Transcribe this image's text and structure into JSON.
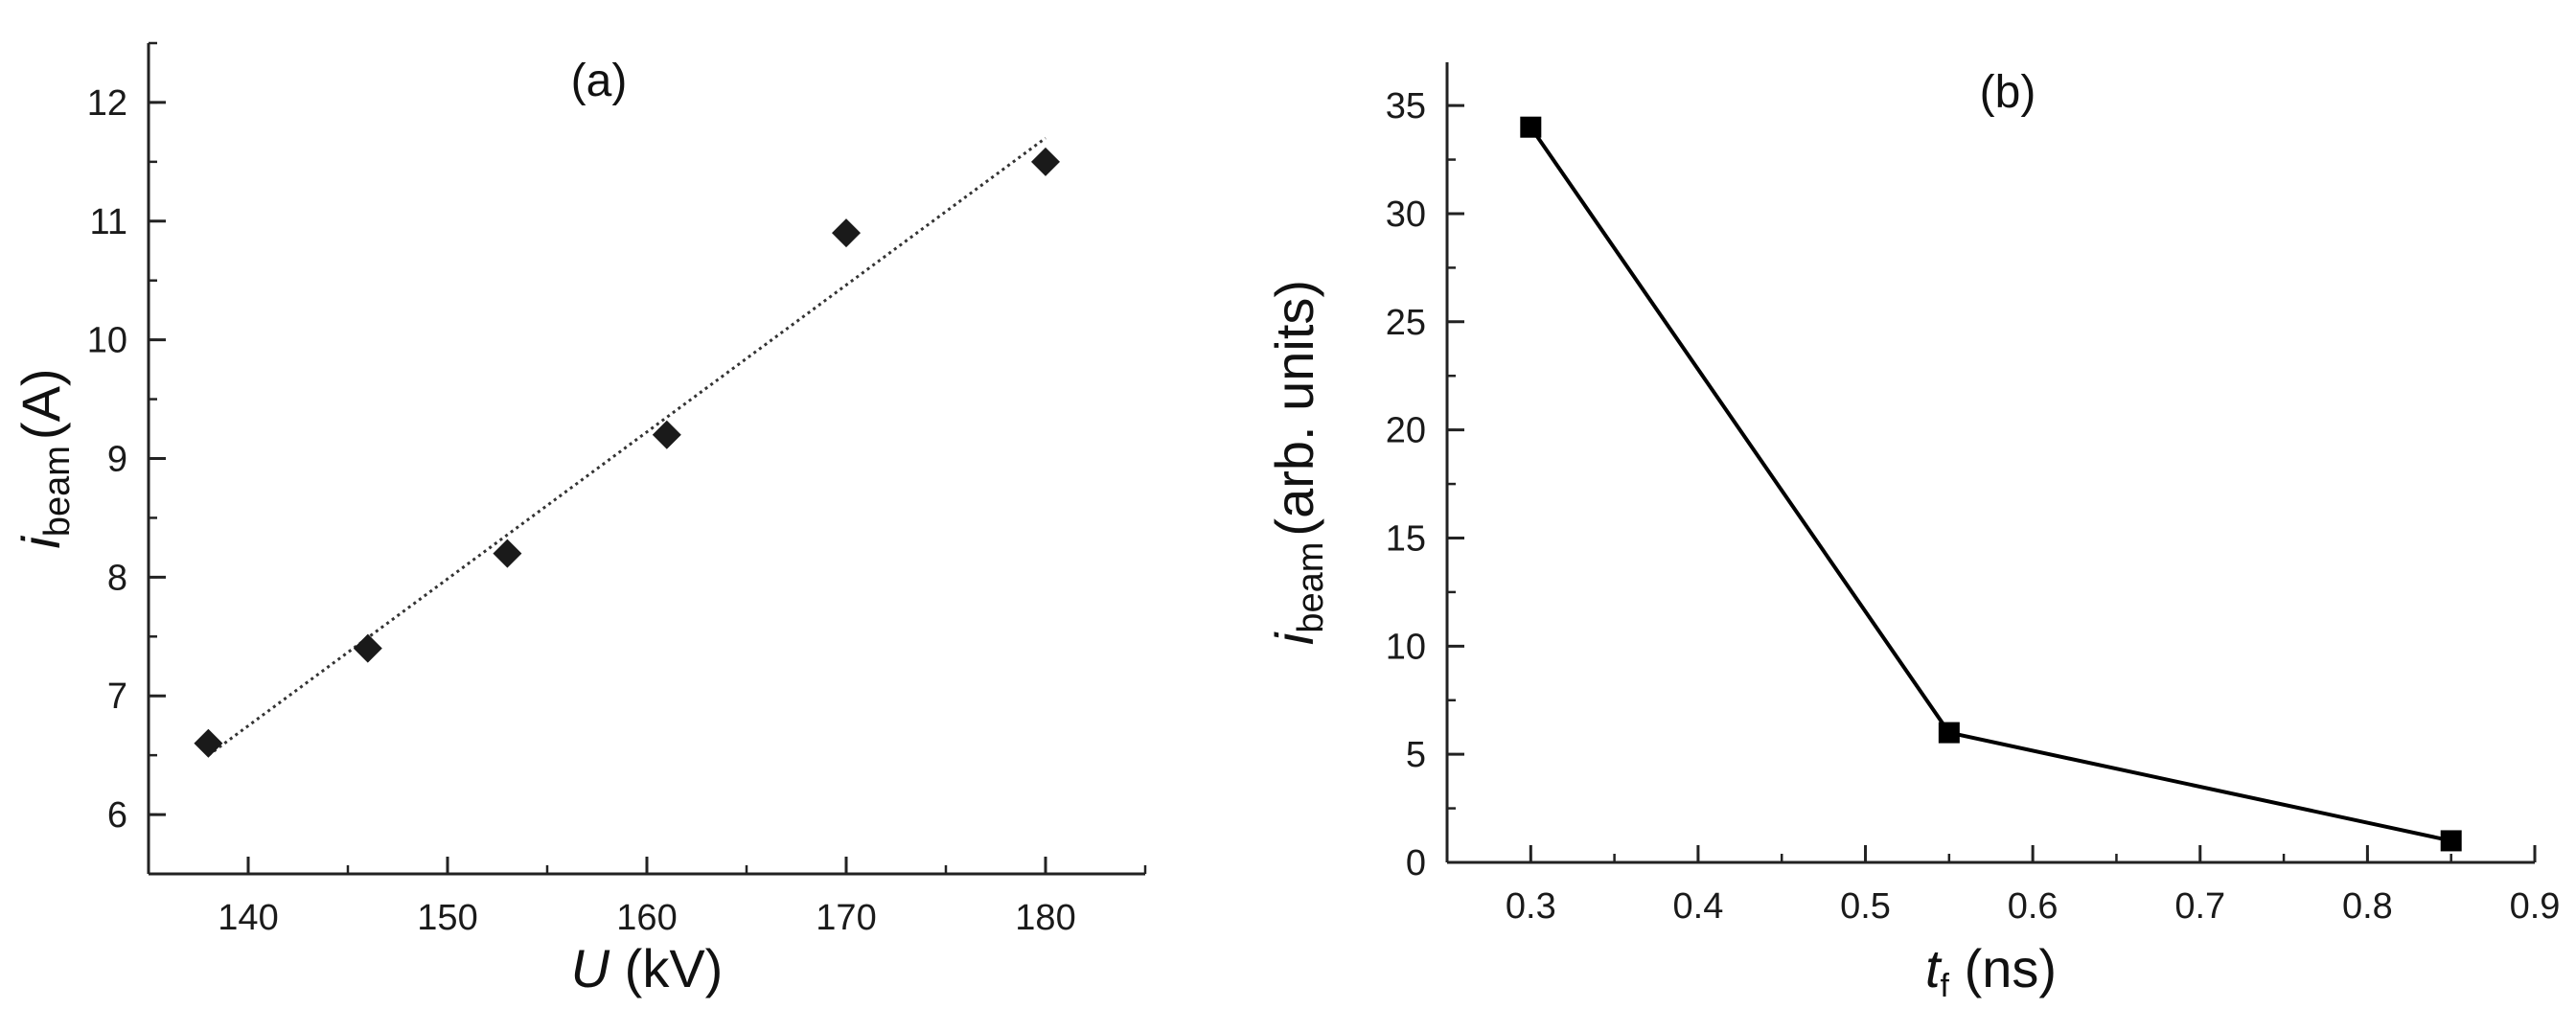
{
  "chart_data": [
    {
      "type": "scatter",
      "panel_label": "(a)",
      "xlabel": {
        "main": "U",
        "unit": "(kV)"
      },
      "ylabel": {
        "main": "i",
        "sub": "beam",
        "unit": "(A)"
      },
      "xlim": [
        135,
        185
      ],
      "ylim": [
        5.5,
        12.5
      ],
      "xticks": [
        140,
        150,
        160,
        170,
        180
      ],
      "yticks": [
        6,
        7,
        8,
        9,
        10,
        11,
        12
      ],
      "grid": false,
      "series": [
        {
          "marker": "diamond",
          "color": "#1a1a1a",
          "points": [
            {
              "x": 138,
              "y": 6.6
            },
            {
              "x": 146,
              "y": 7.4
            },
            {
              "x": 153,
              "y": 8.2
            },
            {
              "x": 161,
              "y": 9.2
            },
            {
              "x": 170,
              "y": 10.9
            },
            {
              "x": 180,
              "y": 11.5
            }
          ]
        }
      ],
      "fit_line": {
        "style": "dotted",
        "color": "#333333",
        "from": {
          "x": 138,
          "y": 6.5
        },
        "to": {
          "x": 180,
          "y": 11.7
        }
      }
    },
    {
      "type": "line",
      "panel_label": "(b)",
      "xlabel": {
        "main": "t",
        "sub": "f",
        "unit": "(ns)"
      },
      "ylabel": {
        "main": "i",
        "sub": "beam",
        "unit": "(arb. units)"
      },
      "xlim": [
        0.25,
        0.9
      ],
      "ylim": [
        0,
        37
      ],
      "xticks": [
        0.3,
        0.4,
        0.5,
        0.6,
        0.7,
        0.8,
        0.9
      ],
      "yticks": [
        0,
        5,
        10,
        15,
        20,
        25,
        30,
        35
      ],
      "grid": false,
      "series": [
        {
          "marker": "square",
          "color": "#000000",
          "points": [
            {
              "x": 0.3,
              "y": 34
            },
            {
              "x": 0.55,
              "y": 6
            },
            {
              "x": 0.85,
              "y": 1
            }
          ]
        }
      ]
    }
  ]
}
